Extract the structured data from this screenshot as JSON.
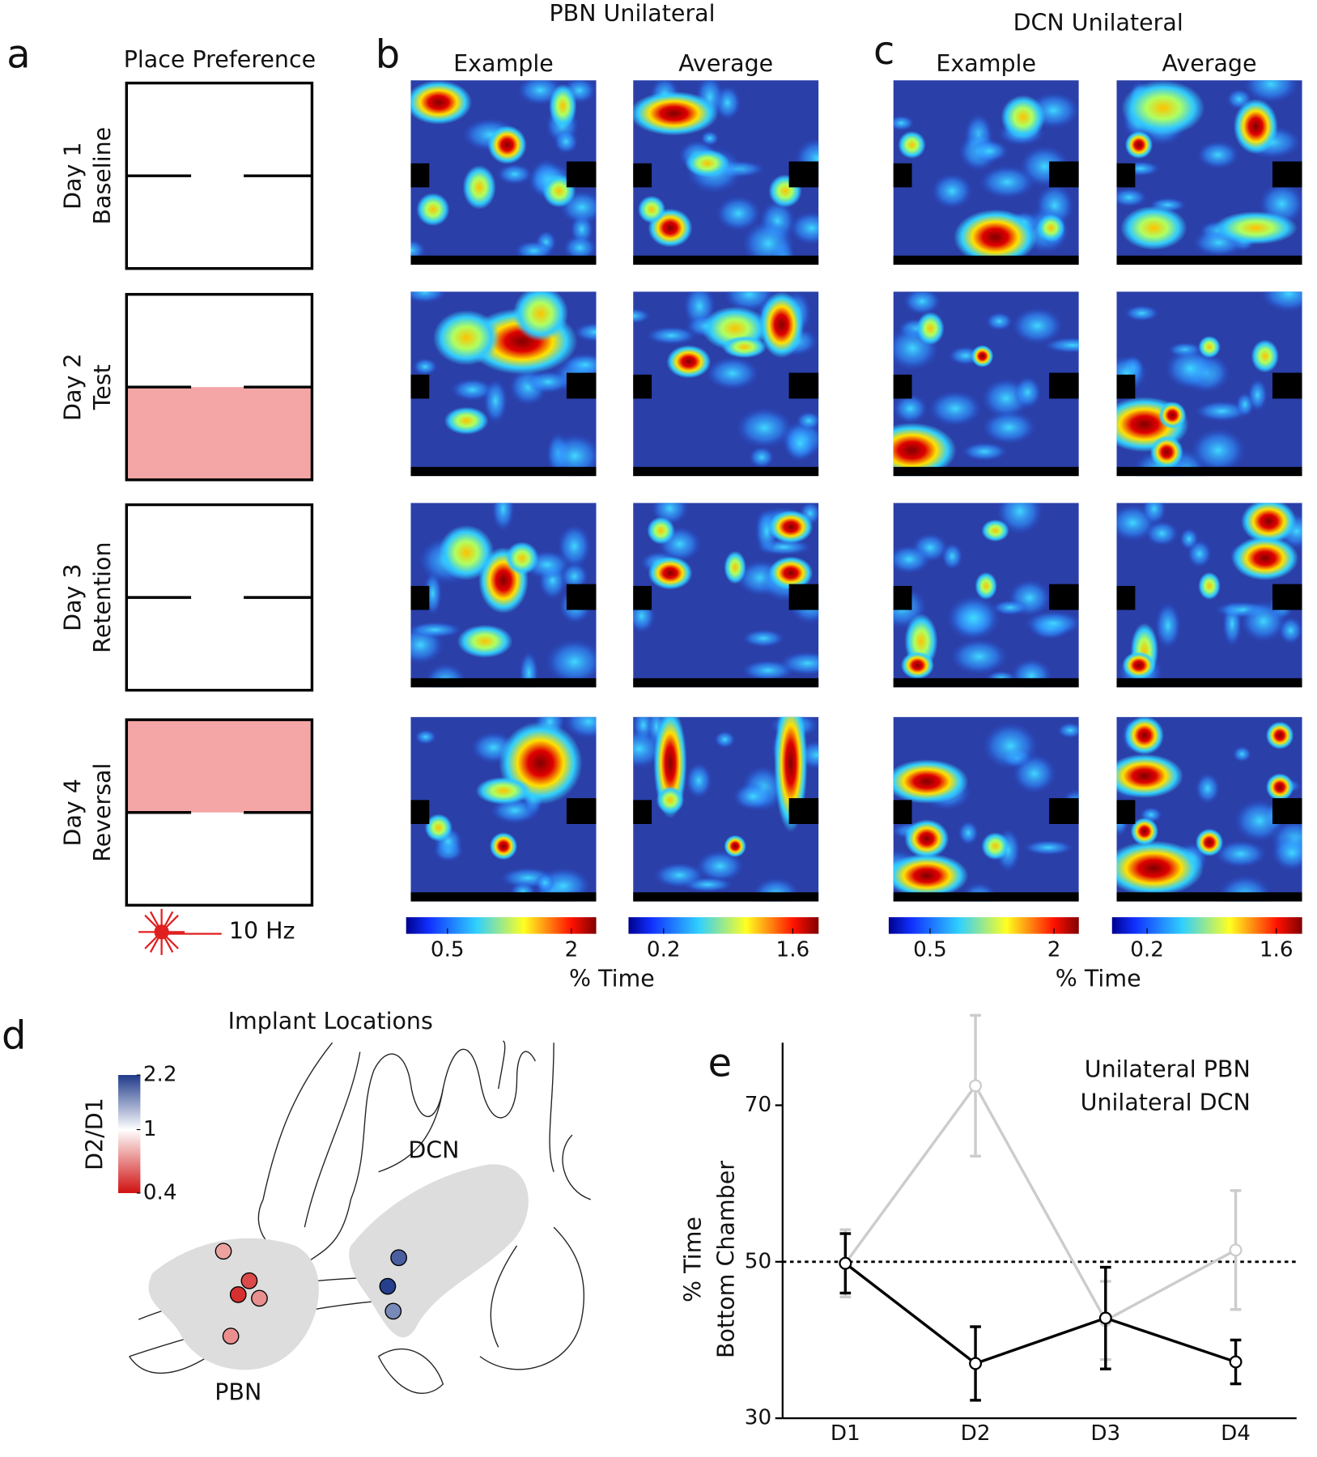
{
  "panel_letters": [
    "a",
    "b",
    "c",
    "d",
    "e"
  ],
  "panel_a": {
    "title": "Place Preference",
    "days": [
      [
        "Day 1",
        "Baseline"
      ],
      [
        "Day 2",
        "Test"
      ],
      [
        "Day 3",
        "Retention"
      ],
      [
        "Day 4",
        "Reversal"
      ]
    ],
    "stim": "10 Hz"
  },
  "heatmaps": {
    "groups": [
      {
        "title": "PBN Unilateral",
        "xlabel": "% Time",
        "columns": [
          {
            "title": "Example",
            "colorbar": {
              "clim": [
                0,
                2.3
              ],
              "ticks": [
                0.5,
                2
              ]
            }
          },
          {
            "title": "Average",
            "colorbar": {
              "clim": [
                -0.18,
                1.88
              ],
              "ticks": [
                0.2,
                1.6
              ]
            }
          }
        ]
      },
      {
        "title": "DCN Unilateral",
        "xlabel": "% Time",
        "columns": [
          {
            "title": "Example",
            "colorbar": {
              "clim": [
                0,
                2.3
              ],
              "ticks": [
                0.5,
                2
              ]
            }
          },
          {
            "title": "Average",
            "colorbar": {
              "clim": [
                -0.18,
                1.88
              ],
              "ticks": [
                0.2,
                1.6
              ]
            }
          }
        ]
      }
    ]
  },
  "implants": {
    "title": "Implant Locations",
    "regions": [
      "DCN",
      "PBN"
    ],
    "colorbar": {
      "label": "D2/D1",
      "clim": [
        0.4,
        2.2
      ],
      "ticks": [
        2.2,
        1,
        0.4
      ],
      "scale": "log"
    },
    "values": [
      0.7,
      0.5,
      0.45,
      0.65,
      0.65,
      1.9,
      2.15,
      1.6
    ]
  },
  "chart_data": {
    "type": "line",
    "ylabel": [
      "% Time",
      "Bottom Chamber"
    ],
    "categories": [
      "D1",
      "D2",
      "D3",
      "D4"
    ],
    "ylim": [
      30,
      78
    ],
    "yticks": [
      30,
      50,
      70
    ],
    "hline": 50,
    "legend": "upper right",
    "series": [
      {
        "name": "Unilateral PBN",
        "color": "#000000",
        "values": [
          49.8,
          37,
          42.8,
          37.2
        ],
        "errors": [
          3.8,
          4.7,
          6.5,
          2.8
        ]
      },
      {
        "name": "Unilateral DCN",
        "color": "#cccccc",
        "values": [
          49.8,
          72.5,
          42.5,
          51.5
        ],
        "errors": [
          4.3,
          9,
          5,
          7.6
        ]
      }
    ]
  }
}
